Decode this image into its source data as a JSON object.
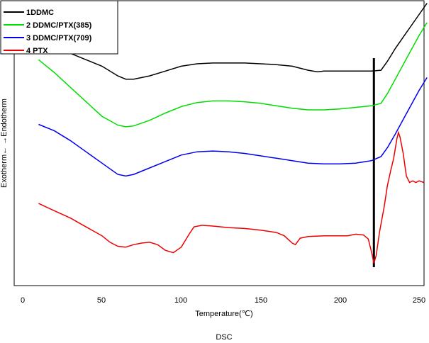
{
  "chart_data": {
    "type": "line",
    "title": "",
    "caption": "DSC",
    "xlabel": "Temperature(℃)",
    "ylabel": "Exotherm←    →Endotherm",
    "xlim": [
      0,
      255
    ],
    "xticks": [
      0,
      50,
      100,
      150,
      200,
      250
    ],
    "grid": false,
    "legend_position": "top-left",
    "marker_line": {
      "x": 221.5,
      "color": "#000000"
    },
    "series": [
      {
        "name": "1DDMC",
        "color": "#000000",
        "x": [
          10,
          25,
          40,
          50,
          60,
          65,
          70,
          80,
          90,
          100,
          110,
          120,
          130,
          140,
          150,
          160,
          170,
          180,
          186,
          190,
          200,
          210,
          220,
          226,
          230,
          235,
          240,
          245,
          250,
          255
        ],
        "y": [
          12.5,
          11.9,
          11.3,
          10.9,
          10.3,
          10.1,
          10.1,
          10.3,
          10.6,
          10.9,
          11.05,
          11.1,
          11.1,
          11.1,
          11.05,
          11.0,
          10.9,
          10.65,
          10.55,
          10.6,
          10.6,
          10.6,
          10.6,
          10.65,
          11.2,
          12.0,
          12.7,
          13.4,
          14.1,
          14.8
        ]
      },
      {
        "name": "2 DDMC/PTX(385)",
        "color": "#00dd00",
        "x": [
          10,
          20,
          30,
          40,
          50,
          60,
          65,
          70,
          80,
          90,
          100,
          110,
          120,
          130,
          140,
          150,
          160,
          170,
          180,
          190,
          200,
          210,
          220,
          226,
          230,
          235,
          240,
          245,
          250,
          255
        ],
        "y": [
          11.3,
          10.5,
          9.6,
          8.7,
          7.8,
          7.25,
          7.15,
          7.2,
          7.55,
          8.0,
          8.4,
          8.65,
          8.75,
          8.75,
          8.7,
          8.6,
          8.45,
          8.3,
          8.2,
          8.2,
          8.25,
          8.35,
          8.45,
          8.6,
          9.2,
          10.1,
          11.0,
          11.9,
          12.8,
          13.6
        ]
      },
      {
        "name": "3 DDMC/PTX(709)",
        "color": "#0000ee",
        "x": [
          10,
          20,
          30,
          40,
          50,
          60,
          65,
          70,
          80,
          90,
          100,
          110,
          120,
          130,
          140,
          150,
          160,
          170,
          180,
          190,
          200,
          210,
          220,
          226,
          230,
          235,
          240,
          245,
          250,
          255
        ],
        "y": [
          7.3,
          6.9,
          6.3,
          5.6,
          4.9,
          4.2,
          4.1,
          4.2,
          4.6,
          5.0,
          5.4,
          5.6,
          5.65,
          5.6,
          5.5,
          5.35,
          5.2,
          5.05,
          4.9,
          4.85,
          4.85,
          4.9,
          5.05,
          5.3,
          5.85,
          6.7,
          7.6,
          8.5,
          9.4,
          10.2
        ]
      },
      {
        "name": "4 PTX",
        "color": "#ee0000",
        "x": [
          10,
          20,
          30,
          40,
          50,
          55,
          60,
          65,
          70,
          75,
          80,
          85,
          90,
          95,
          100,
          105,
          108,
          113,
          120,
          130,
          140,
          150,
          160,
          165,
          170,
          172,
          175,
          180,
          190,
          200,
          205,
          210,
          215,
          218,
          220,
          221.5,
          223,
          225,
          228,
          230,
          232,
          234,
          236,
          237,
          238,
          240,
          242,
          244,
          246,
          248,
          250,
          253
        ],
        "y": [
          2.4,
          1.95,
          1.5,
          0.95,
          0.4,
          0.0,
          -0.25,
          -0.3,
          -0.15,
          -0.05,
          0.0,
          -0.15,
          -0.5,
          -0.65,
          -0.3,
          0.5,
          0.95,
          1.05,
          1.0,
          0.9,
          0.85,
          0.75,
          0.6,
          0.4,
          -0.05,
          -0.15,
          0.25,
          0.35,
          0.4,
          0.4,
          0.4,
          0.5,
          0.45,
          0.2,
          -0.6,
          -1.3,
          -0.8,
          0.6,
          2.2,
          3.5,
          4.4,
          5.2,
          6.4,
          6.8,
          6.5,
          5.5,
          4.1,
          3.7,
          3.8,
          3.7,
          3.8,
          3.7
        ]
      }
    ]
  }
}
